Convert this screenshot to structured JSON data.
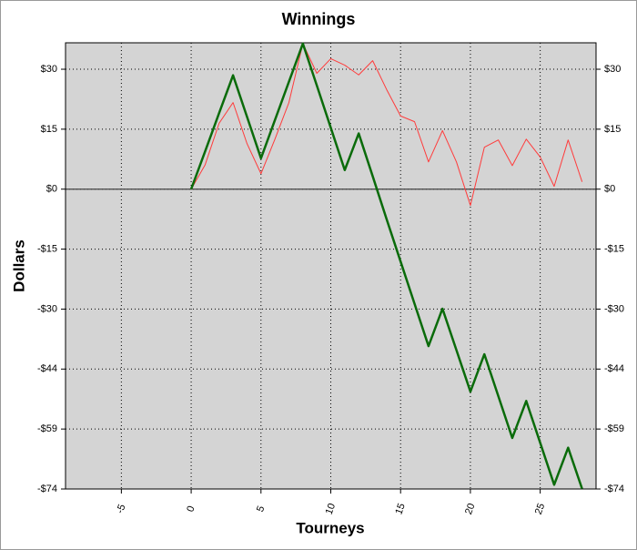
{
  "chart_data": {
    "type": "line",
    "title": "Winnings",
    "x_label": "Tourneys",
    "y_label": "Dollars",
    "x": [
      0,
      1,
      2,
      3,
      4,
      5,
      6,
      7,
      8,
      9,
      10,
      11,
      12,
      13,
      14,
      15,
      16,
      17,
      18,
      19,
      20,
      21,
      22,
      23,
      24,
      25,
      26,
      27,
      28
    ],
    "series": [
      {
        "color": "#ff3b3b",
        "width": 1,
        "values": [
          0,
          6,
          16.2,
          21.3,
          11.2,
          3.8,
          12.3,
          21.3,
          35.8,
          28.5,
          32.1,
          30.5,
          28.1,
          31.6,
          24.5,
          18,
          16.6,
          6.7,
          14.4,
          6.7,
          -4,
          10.3,
          12.1,
          5.8,
          12.3,
          7.9,
          0.7,
          12.1,
          1.8
        ]
      },
      {
        "color": "#0a6b0a",
        "width": 2.5,
        "values": [
          0,
          9.3,
          18.7,
          28,
          17.8,
          7.6,
          17,
          26.4,
          35.8,
          25.5,
          15.1,
          4.7,
          13.7,
          3.2,
          -7.4,
          -17.8,
          -28.2,
          -38.6,
          -29.4,
          -39.6,
          -49.8,
          -40.6,
          -50.9,
          -61.2,
          -52.1,
          -62.4,
          -72.7,
          -63.6,
          -73.7
        ]
      }
    ],
    "xlim": [
      -9,
      29
    ],
    "xticks": [
      -5,
      0,
      5,
      10,
      15,
      20,
      25
    ],
    "ylim": [
      -73.75,
      36
    ],
    "yticks": [
      {
        "value": 29.5,
        "label": "$30"
      },
      {
        "value": 14.75,
        "label": "$15"
      },
      {
        "value": 0,
        "label": "$0"
      },
      {
        "value": -14.75,
        "label": "-$15"
      },
      {
        "value": -29.5,
        "label": "-$30"
      },
      {
        "value": -44.25,
        "label": "-$44"
      },
      {
        "value": -59,
        "label": "-$59"
      },
      {
        "value": -73.75,
        "label": "-$74"
      }
    ],
    "grid": true
  }
}
